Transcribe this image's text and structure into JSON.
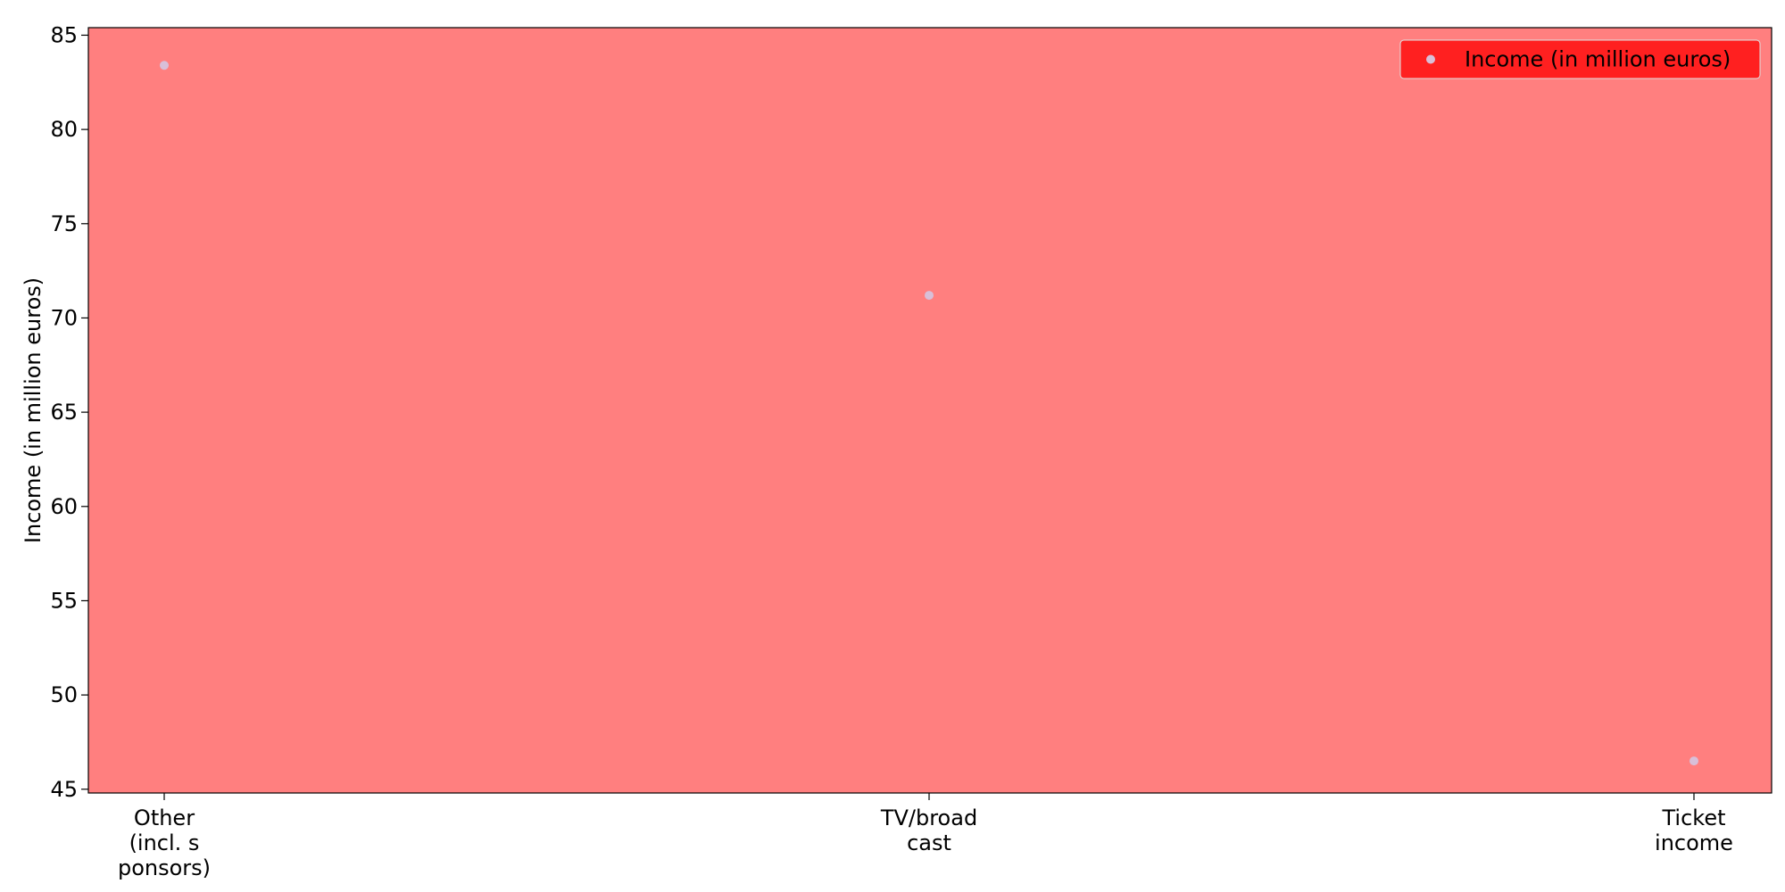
{
  "chart_data": {
    "type": "scatter",
    "categories": [
      "Other\n(incl. s\nponsors)",
      "TV/broad\ncast",
      "Ticket\nincome"
    ],
    "series": [
      {
        "name": "Income (in million euros)",
        "values": [
          83.4,
          71.2,
          46.5
        ]
      }
    ],
    "title": "",
    "xlabel": "",
    "ylabel": "Income (in million euros)",
    "ylim": [
      44.8,
      85.4
    ],
    "yticks": [
      45,
      50,
      55,
      60,
      65,
      70,
      75,
      80,
      85
    ],
    "grid": false,
    "legend_position": "top-right",
    "colors": {
      "plot_background": "#ff7f7f",
      "marker": "#d8bfd8",
      "legend_background": "#ff2020",
      "axis": "#000000"
    }
  }
}
